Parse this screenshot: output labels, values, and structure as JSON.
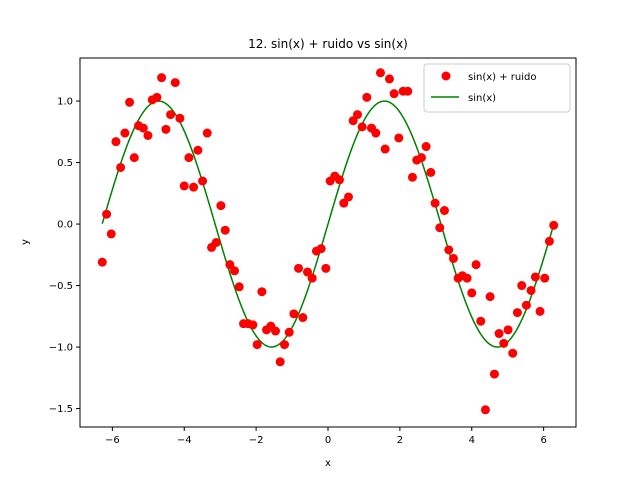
{
  "chart_data": {
    "type": "scatter",
    "title": "12. sin(x) + ruido vs sin(x)",
    "xlabel": "x",
    "ylabel": "y",
    "xlim": [
      -6.9,
      6.9
    ],
    "ylim": [
      -1.65,
      1.35
    ],
    "xticks": [
      -6,
      -4,
      -2,
      0,
      2,
      4,
      6
    ],
    "yticks": [
      -1.5,
      -1.0,
      -0.5,
      0.0,
      0.5,
      1.0
    ],
    "xtick_labels": [
      "−6",
      "−4",
      "−2",
      "0",
      "2",
      "4",
      "6"
    ],
    "ytick_labels": [
      "−1.5",
      "−1.0",
      "−0.5",
      "0.0",
      "0.5",
      "1.0"
    ],
    "grid": false,
    "legend_position": "top-right",
    "series": [
      {
        "name": "sin(x) + ruido",
        "kind": "scatter",
        "color": "#ff0000",
        "x": [
          -6.28,
          -6.16,
          -6.03,
          -5.9,
          -5.77,
          -5.65,
          -5.52,
          -5.39,
          -5.27,
          -5.14,
          -5.01,
          -4.89,
          -4.76,
          -4.63,
          -4.51,
          -4.38,
          -4.25,
          -4.12,
          -4.0,
          -3.87,
          -3.74,
          -3.62,
          -3.49,
          -3.36,
          -3.24,
          -3.11,
          -2.98,
          -2.86,
          -2.73,
          -2.6,
          -2.47,
          -2.35,
          -2.22,
          -2.09,
          -1.97,
          -1.84,
          -1.71,
          -1.59,
          -1.46,
          -1.33,
          -1.21,
          -1.08,
          -0.95,
          -0.82,
          -0.7,
          -0.57,
          -0.44,
          -0.32,
          -0.19,
          -0.06,
          0.06,
          0.19,
          0.32,
          0.44,
          0.57,
          0.7,
          0.82,
          0.95,
          1.08,
          1.21,
          1.33,
          1.46,
          1.59,
          1.71,
          1.84,
          1.97,
          2.09,
          2.22,
          2.35,
          2.47,
          2.6,
          2.73,
          2.86,
          2.98,
          3.11,
          3.24,
          3.36,
          3.49,
          3.62,
          3.74,
          3.87,
          4.0,
          4.12,
          4.25,
          4.38,
          4.51,
          4.63,
          4.76,
          4.89,
          5.01,
          5.14,
          5.27,
          5.39,
          5.52,
          5.65,
          5.77,
          5.9,
          6.03,
          6.16,
          6.28
        ],
        "values": [
          -0.31,
          0.08,
          -0.08,
          0.67,
          0.46,
          0.74,
          0.99,
          0.54,
          0.8,
          0.78,
          0.72,
          1.01,
          1.03,
          1.19,
          0.77,
          0.89,
          1.15,
          0.86,
          0.31,
          0.54,
          0.3,
          0.6,
          0.35,
          0.74,
          -0.19,
          -0.15,
          0.15,
          -0.05,
          -0.33,
          -0.38,
          -0.51,
          -0.81,
          -0.81,
          -0.82,
          -0.98,
          -0.55,
          -0.86,
          -0.83,
          -0.87,
          -1.12,
          -0.98,
          -0.88,
          -0.73,
          -0.36,
          -0.76,
          -0.39,
          -0.44,
          -0.22,
          -0.2,
          -0.36,
          0.35,
          0.39,
          0.36,
          0.17,
          0.22,
          0.84,
          0.89,
          0.79,
          1.03,
          0.78,
          0.74,
          1.23,
          0.61,
          1.18,
          1.06,
          0.7,
          1.08,
          1.08,
          0.38,
          0.52,
          0.54,
          0.63,
          0.42,
          0.17,
          -0.03,
          0.11,
          -0.21,
          -0.28,
          -0.44,
          -0.42,
          -0.44,
          -0.56,
          -0.33,
          -0.79,
          -1.51,
          -0.59,
          -1.22,
          -0.89,
          -0.97,
          -0.86,
          -1.05,
          -0.72,
          -0.5,
          -0.66,
          -0.54,
          -0.43,
          -0.71,
          -0.44,
          -0.14,
          -0.01
        ]
      },
      {
        "name": "sin(x)",
        "kind": "line",
        "color": "#008000",
        "function": "sin",
        "x_range": [
          -6.28,
          6.28
        ]
      }
    ]
  }
}
